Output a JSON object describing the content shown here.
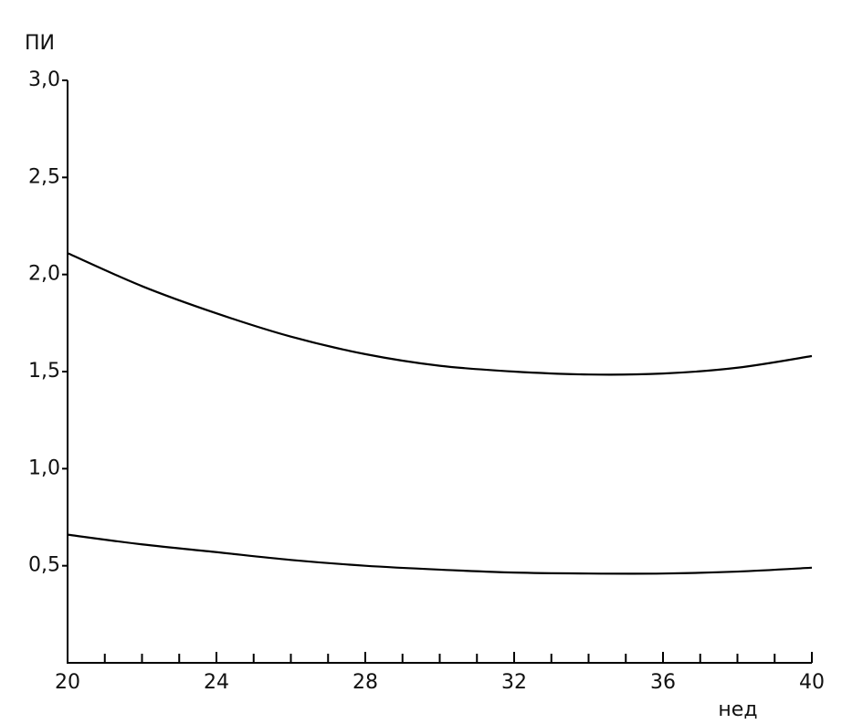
{
  "chart_data": {
    "type": "line",
    "ylabel": "ПИ",
    "xlabel": "нед",
    "x": [
      20,
      22,
      24,
      26,
      28,
      30,
      32,
      34,
      36,
      38,
      40
    ],
    "series": [
      {
        "color": "#000000",
        "values": [
          2.11,
          1.94,
          1.8,
          1.68,
          1.59,
          1.53,
          1.5,
          1.485,
          1.49,
          1.52,
          1.58
        ]
      },
      {
        "color": "#000000",
        "values": [
          0.66,
          0.61,
          0.57,
          0.53,
          0.5,
          0.48,
          0.465,
          0.46,
          0.46,
          0.47,
          0.49
        ]
      }
    ],
    "xlim": [
      20,
      40
    ],
    "xticks": [
      20,
      24,
      28,
      32,
      36,
      40
    ],
    "xminor_ticks": [
      21,
      22,
      23,
      25,
      26,
      27,
      29,
      30,
      31,
      33,
      34,
      35,
      37,
      38,
      39
    ],
    "ylim": [
      0,
      3.0
    ],
    "yticks": [
      {
        "value": 0.5,
        "label": "0,5"
      },
      {
        "value": 1.0,
        "label": "1,0"
      },
      {
        "value": 1.5,
        "label": "1,5"
      },
      {
        "value": 2.0,
        "label": "2,0"
      },
      {
        "value": 2.5,
        "label": "2,5"
      },
      {
        "value": 3.0,
        "label": "3,0"
      }
    ],
    "grid": false
  }
}
